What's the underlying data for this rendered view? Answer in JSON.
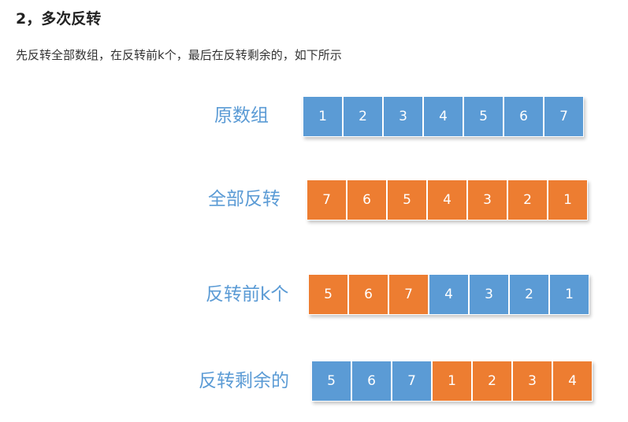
{
  "heading": "2，多次反转",
  "intro": "先反转全部数组，在反转前k个，最后在反转剩余的，如下所示",
  "colors": {
    "blue": "#5b9bd5",
    "orange": "#ed7d31",
    "label": "#5b9bd5"
  },
  "rows": [
    {
      "label": "原数组",
      "cells": [
        {
          "value": "1",
          "color": "blue"
        },
        {
          "value": "2",
          "color": "blue"
        },
        {
          "value": "3",
          "color": "blue"
        },
        {
          "value": "4",
          "color": "blue"
        },
        {
          "value": "5",
          "color": "blue"
        },
        {
          "value": "6",
          "color": "blue"
        },
        {
          "value": "7",
          "color": "blue"
        }
      ]
    },
    {
      "label": "全部反转",
      "cells": [
        {
          "value": "7",
          "color": "orange"
        },
        {
          "value": "6",
          "color": "orange"
        },
        {
          "value": "5",
          "color": "orange"
        },
        {
          "value": "4",
          "color": "orange"
        },
        {
          "value": "3",
          "color": "orange"
        },
        {
          "value": "2",
          "color": "orange"
        },
        {
          "value": "1",
          "color": "orange"
        }
      ]
    },
    {
      "label": "反转前k个",
      "cells": [
        {
          "value": "5",
          "color": "orange"
        },
        {
          "value": "6",
          "color": "orange"
        },
        {
          "value": "7",
          "color": "orange"
        },
        {
          "value": "4",
          "color": "blue"
        },
        {
          "value": "3",
          "color": "blue"
        },
        {
          "value": "2",
          "color": "blue"
        },
        {
          "value": "1",
          "color": "blue"
        }
      ]
    },
    {
      "label": "反转剩余的",
      "cells": [
        {
          "value": "5",
          "color": "blue"
        },
        {
          "value": "6",
          "color": "blue"
        },
        {
          "value": "7",
          "color": "blue"
        },
        {
          "value": "1",
          "color": "orange"
        },
        {
          "value": "2",
          "color": "orange"
        },
        {
          "value": "3",
          "color": "orange"
        },
        {
          "value": "4",
          "color": "orange"
        }
      ]
    }
  ]
}
